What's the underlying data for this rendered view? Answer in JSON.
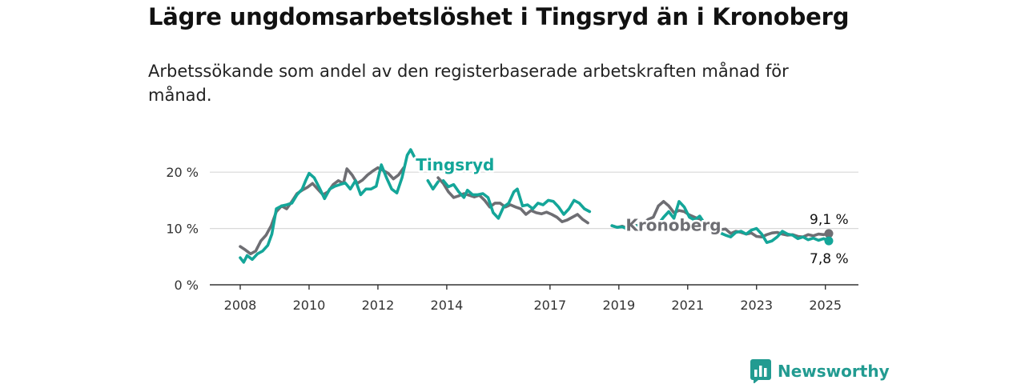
{
  "header": {
    "title": "Lägre ungdomsarbetslöshet i Tingsryd än i Kronoberg",
    "subtitle": "Arbetssökande som andel av den registerbaserade arbetskraften månad för månad."
  },
  "brand": {
    "name": "Newsworthy",
    "icon": "newsworthy-logo-icon",
    "color": "#229b91"
  },
  "chart_data": {
    "type": "line",
    "ylim": [
      0,
      25
    ],
    "yticks": [
      {
        "value": 0,
        "label": "0 %"
      },
      {
        "value": 10,
        "label": "10 %"
      },
      {
        "value": 20,
        "label": "20 %"
      }
    ],
    "xlim": [
      2007.5,
      2025.5
    ],
    "xticks": [
      {
        "value": 2008,
        "label": "2008"
      },
      {
        "value": 2010,
        "label": "2010"
      },
      {
        "value": 2012,
        "label": "2012"
      },
      {
        "value": 2014,
        "label": "2014"
      },
      {
        "value": 2017,
        "label": "2017"
      },
      {
        "value": 2019,
        "label": "2019"
      },
      {
        "value": 2021,
        "label": "2021"
      },
      {
        "value": 2023,
        "label": "2023"
      },
      {
        "value": 2025,
        "label": "2025"
      }
    ],
    "grid": true,
    "series": [
      {
        "name": "Kronoberg",
        "color": "#6e6e73",
        "end_label": "9,1 %",
        "points": [
          [
            2008.0,
            6.8
          ],
          [
            2008.15,
            6.2
          ],
          [
            2008.3,
            5.5
          ],
          [
            2008.45,
            6.0
          ],
          [
            2008.6,
            7.8
          ],
          [
            2008.75,
            8.8
          ],
          [
            2008.9,
            10.5
          ],
          [
            2009.05,
            13.0
          ],
          [
            2009.2,
            14.0
          ],
          [
            2009.35,
            13.5
          ],
          [
            2009.5,
            14.8
          ],
          [
            2009.65,
            16.2
          ],
          [
            2009.8,
            16.8
          ],
          [
            2009.95,
            17.3
          ],
          [
            2010.1,
            18.0
          ],
          [
            2010.25,
            17.0
          ],
          [
            2010.4,
            16.0
          ],
          [
            2010.55,
            16.5
          ],
          [
            2010.7,
            17.8
          ],
          [
            2010.85,
            18.5
          ],
          [
            2011.0,
            18.0
          ],
          [
            2011.1,
            20.6
          ],
          [
            2011.25,
            19.5
          ],
          [
            2011.4,
            18.0
          ],
          [
            2011.55,
            18.6
          ],
          [
            2011.7,
            19.5
          ],
          [
            2011.85,
            20.2
          ],
          [
            2012.0,
            20.8
          ],
          [
            2012.15,
            20.3
          ],
          [
            2012.3,
            19.8
          ],
          [
            2012.45,
            18.8
          ],
          [
            2012.6,
            19.5
          ],
          [
            2012.75,
            20.8
          ],
          [
            null,
            null
          ],
          [
            2013.75,
            19.0
          ],
          [
            2013.9,
            18.0
          ],
          [
            2014.05,
            16.5
          ],
          [
            2014.2,
            15.5
          ],
          [
            2014.35,
            15.8
          ],
          [
            2014.5,
            16.2
          ],
          [
            2014.65,
            15.9
          ],
          [
            2014.8,
            15.6
          ],
          [
            2014.95,
            15.9
          ],
          [
            2015.1,
            15.0
          ],
          [
            2015.25,
            13.8
          ],
          [
            2015.4,
            14.5
          ],
          [
            2015.55,
            14.5
          ],
          [
            2015.7,
            13.8
          ],
          [
            2015.85,
            14.2
          ],
          [
            2016.0,
            13.8
          ],
          [
            2016.15,
            13.5
          ],
          [
            2016.3,
            12.5
          ],
          [
            2016.45,
            13.2
          ],
          [
            2016.6,
            12.8
          ],
          [
            2016.75,
            12.6
          ],
          [
            2016.9,
            12.9
          ],
          [
            2017.05,
            12.5
          ],
          [
            2017.2,
            12.0
          ],
          [
            2017.35,
            11.2
          ],
          [
            2017.5,
            11.5
          ],
          [
            2017.65,
            12.0
          ],
          [
            2017.8,
            12.5
          ],
          [
            2017.95,
            11.6
          ],
          [
            2018.1,
            11.0
          ],
          [
            null,
            null
          ],
          [
            2018.8,
            10.5
          ],
          [
            2018.95,
            10.2
          ],
          [
            2019.1,
            10.4
          ],
          [
            2019.25,
            10.0
          ],
          [
            2019.4,
            10.6
          ],
          [
            2019.55,
            10.5
          ],
          [
            2019.7,
            10.8
          ],
          [
            2019.85,
            11.6
          ],
          [
            2020.0,
            12.0
          ],
          [
            2020.15,
            14.0
          ],
          [
            2020.3,
            14.8
          ],
          [
            2020.45,
            14.0
          ],
          [
            2020.6,
            12.8
          ],
          [
            2020.75,
            13.2
          ],
          [
            2020.9,
            13.0
          ],
          [
            2021.05,
            12.4
          ],
          [
            2021.2,
            12.0
          ],
          [
            2021.35,
            11.6
          ],
          [
            2021.5,
            10.9
          ],
          [
            2021.65,
            10.5
          ],
          [
            2021.8,
            10.0
          ],
          [
            2021.95,
            9.8
          ],
          [
            2022.1,
            9.9
          ],
          [
            2022.25,
            9.1
          ],
          [
            2022.4,
            9.5
          ],
          [
            2022.55,
            9.3
          ],
          [
            2022.7,
            9.0
          ],
          [
            2022.85,
            9.2
          ],
          [
            2023.0,
            8.6
          ],
          [
            2023.15,
            8.5
          ],
          [
            2023.3,
            8.9
          ],
          [
            2023.45,
            9.2
          ],
          [
            2023.6,
            9.3
          ],
          [
            2023.75,
            9.0
          ],
          [
            2023.9,
            8.8
          ],
          [
            2024.05,
            8.9
          ],
          [
            2024.2,
            8.6
          ],
          [
            2024.35,
            8.5
          ],
          [
            2024.5,
            8.9
          ],
          [
            2024.65,
            8.7
          ],
          [
            2024.8,
            9.0
          ],
          [
            2024.95,
            8.9
          ],
          [
            2025.1,
            9.1
          ]
        ]
      },
      {
        "name": "Tingsryd",
        "color": "#14a699",
        "end_label": "7,8 %",
        "points": [
          [
            2008.0,
            4.8
          ],
          [
            2008.1,
            4.0
          ],
          [
            2008.2,
            5.2
          ],
          [
            2008.35,
            4.5
          ],
          [
            2008.5,
            5.5
          ],
          [
            2008.65,
            6.0
          ],
          [
            2008.8,
            7.0
          ],
          [
            2008.92,
            9.0
          ],
          [
            2009.05,
            13.5
          ],
          [
            2009.2,
            14.0
          ],
          [
            2009.35,
            14.2
          ],
          [
            2009.5,
            14.5
          ],
          [
            2009.65,
            16.0
          ],
          [
            2009.8,
            17.0
          ],
          [
            2009.9,
            18.5
          ],
          [
            2010.0,
            19.8
          ],
          [
            2010.15,
            19.0
          ],
          [
            2010.3,
            17.2
          ],
          [
            2010.45,
            15.3
          ],
          [
            2010.6,
            17.0
          ],
          [
            2010.75,
            17.5
          ],
          [
            2010.9,
            17.8
          ],
          [
            2011.05,
            18.1
          ],
          [
            2011.2,
            17.0
          ],
          [
            2011.35,
            18.5
          ],
          [
            2011.5,
            16.0
          ],
          [
            2011.65,
            17.0
          ],
          [
            2011.8,
            17.0
          ],
          [
            2011.95,
            17.5
          ],
          [
            2012.1,
            21.3
          ],
          [
            2012.25,
            19.0
          ],
          [
            2012.4,
            17.0
          ],
          [
            2012.55,
            16.3
          ],
          [
            2012.7,
            19.0
          ],
          [
            2012.85,
            23.0
          ],
          [
            2012.95,
            24.0
          ],
          [
            2013.05,
            22.8
          ],
          [
            null,
            null
          ],
          [
            2013.45,
            18.5
          ],
          [
            2013.6,
            17.0
          ],
          [
            2013.75,
            18.3
          ],
          [
            null,
            null
          ],
          [
            2013.9,
            18.5
          ],
          [
            2014.05,
            17.4
          ],
          [
            2014.2,
            17.8
          ],
          [
            2014.35,
            16.5
          ],
          [
            2014.5,
            15.5
          ],
          [
            2014.6,
            16.8
          ],
          [
            2014.75,
            16.0
          ],
          [
            2014.9,
            16.0
          ],
          [
            2015.05,
            16.2
          ],
          [
            2015.2,
            15.5
          ],
          [
            2015.35,
            12.8
          ],
          [
            2015.5,
            11.8
          ],
          [
            2015.65,
            13.8
          ],
          [
            2015.8,
            14.5
          ],
          [
            2015.95,
            16.5
          ],
          [
            2016.05,
            17.0
          ],
          [
            2016.2,
            14.0
          ],
          [
            2016.35,
            14.2
          ],
          [
            2016.5,
            13.5
          ],
          [
            2016.65,
            14.5
          ],
          [
            2016.8,
            14.2
          ],
          [
            2016.95,
            15.0
          ],
          [
            2017.1,
            14.8
          ],
          [
            2017.25,
            13.8
          ],
          [
            2017.4,
            12.5
          ],
          [
            2017.55,
            13.5
          ],
          [
            2017.7,
            15.0
          ],
          [
            2017.85,
            14.5
          ],
          [
            2018.0,
            13.5
          ],
          [
            2018.15,
            13.0
          ],
          [
            null,
            null
          ],
          [
            2018.8,
            10.5
          ],
          [
            2018.95,
            10.2
          ],
          [
            2019.1,
            10.3
          ],
          [
            2019.25,
            9.9
          ],
          [
            2019.4,
            10.2
          ],
          [
            2019.55,
            10.5
          ],
          [
            2019.7,
            10.8
          ],
          [
            2019.85,
            10.5
          ],
          [
            2020.0,
            11.0
          ],
          [
            2020.15,
            10.8
          ],
          [
            2020.3,
            12.0
          ],
          [
            2020.45,
            13.0
          ],
          [
            2020.6,
            11.8
          ],
          [
            2020.75,
            14.8
          ],
          [
            2020.9,
            13.8
          ],
          [
            2021.05,
            12.0
          ],
          [
            2021.2,
            11.5
          ],
          [
            2021.35,
            12.2
          ],
          [
            2021.5,
            10.8
          ],
          [
            2021.65,
            10.5
          ],
          [
            2021.8,
            9.8
          ],
          [
            2021.95,
            9.2
          ],
          [
            2022.1,
            8.8
          ],
          [
            2022.25,
            8.5
          ],
          [
            2022.4,
            9.3
          ],
          [
            2022.55,
            9.5
          ],
          [
            2022.7,
            9.0
          ],
          [
            2022.85,
            9.7
          ],
          [
            2023.0,
            10.0
          ],
          [
            2023.15,
            9.0
          ],
          [
            2023.3,
            7.5
          ],
          [
            2023.45,
            7.8
          ],
          [
            2023.6,
            8.5
          ],
          [
            2023.75,
            9.5
          ],
          [
            2023.9,
            9.0
          ],
          [
            2024.05,
            8.8
          ],
          [
            2024.2,
            8.2
          ],
          [
            2024.35,
            8.5
          ],
          [
            2024.5,
            8.0
          ],
          [
            2024.65,
            8.3
          ],
          [
            2024.8,
            7.9
          ],
          [
            2024.95,
            8.2
          ],
          [
            2025.1,
            7.8
          ]
        ]
      }
    ],
    "annotations": [
      {
        "text": "Tingsryd",
        "series": "Tingsryd",
        "x": 2013.1,
        "y": 20.3
      },
      {
        "text": "Kronoberg",
        "series": "Kronoberg",
        "x": 2019.2,
        "y": 9.6
      }
    ]
  }
}
